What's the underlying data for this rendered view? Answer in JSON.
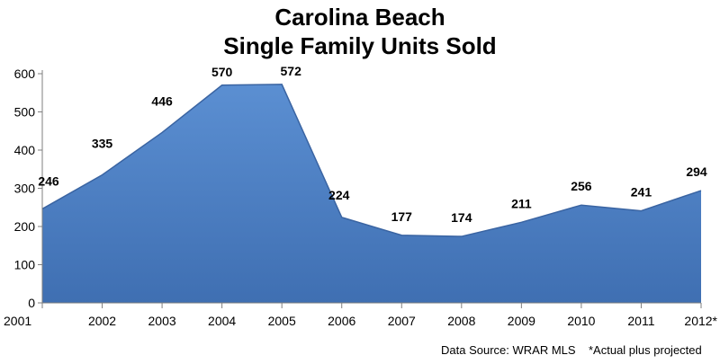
{
  "chart_data": {
    "type": "area",
    "title": [
      "Carolina Beach",
      "Single Family Units Sold"
    ],
    "xlabel": "",
    "ylabel": "",
    "categories": [
      "2001",
      "2002",
      "2003",
      "2004",
      "2005",
      "2006",
      "2007",
      "2008",
      "2009",
      "2010",
      "2011",
      "2012*"
    ],
    "values": [
      246,
      335,
      446,
      570,
      572,
      224,
      177,
      174,
      211,
      256,
      241,
      294
    ],
    "value_labels": [
      "246",
      "335",
      "446",
      "570",
      "572",
      "224",
      "177",
      "174",
      "211",
      "256",
      "241",
      "294"
    ],
    "ylim": [
      0,
      600
    ],
    "yticks": [
      "0",
      "100",
      "200",
      "300",
      "400",
      "500",
      "600"
    ],
    "grid": false,
    "legend": "none",
    "colors": {
      "fill_top": "#5b8fd2",
      "fill_bottom": "#3f6fb2",
      "edge": "#3a64a2",
      "axis": "#7f7f7f"
    }
  },
  "footer": {
    "source": "Data Source: WRAR MLS",
    "note": "*Actual plus projected"
  }
}
